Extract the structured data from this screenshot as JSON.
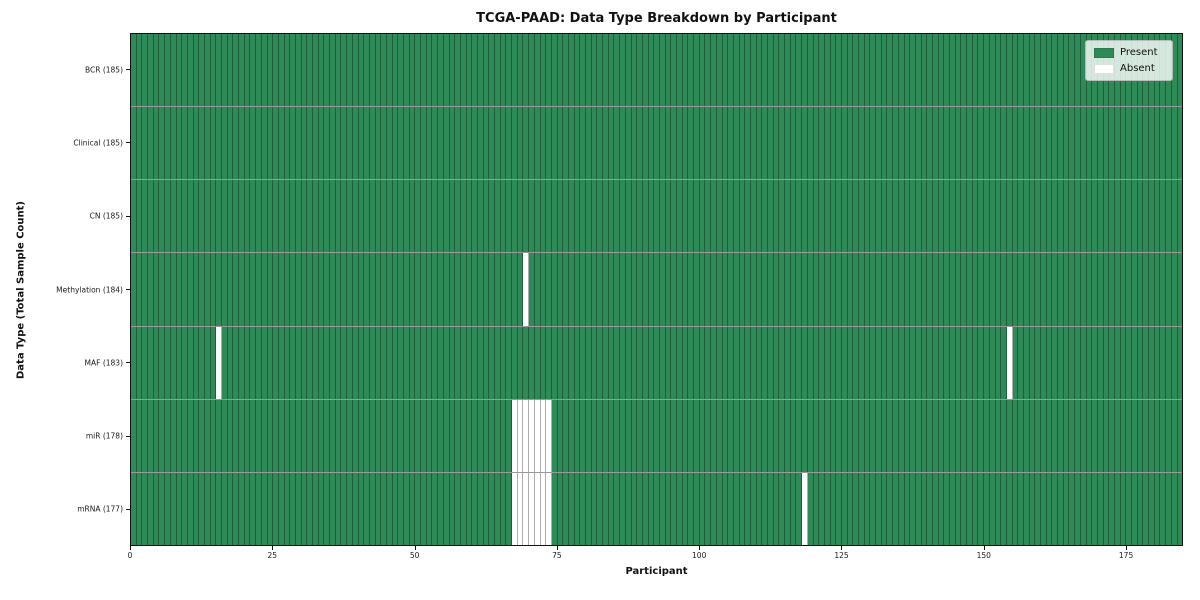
{
  "title": "TCGA-PAAD: Data Type Breakdown by Participant",
  "legend": {
    "entries": [
      {
        "label": "Present",
        "color": "#2e8b57"
      },
      {
        "label": "Absent",
        "color": "#ffffff"
      }
    ]
  },
  "colors": {
    "present": "#2e8b57",
    "absent": "#ffffff",
    "grid_line": "rgba(0,0,0,0.32)",
    "plot_border": "#111111"
  },
  "chart_data": {
    "type": "heatmap",
    "title": "TCGA-PAAD: Data Type Breakdown by Participant",
    "xlabel": "Participant",
    "ylabel": "Data Type (Total Sample Count)",
    "x_range": [
      0,
      185
    ],
    "x_ticks": [
      0,
      25,
      50,
      75,
      100,
      125,
      150,
      175
    ],
    "n_participants": 185,
    "grid": true,
    "legend_position": "upper right",
    "legend_entries": [
      "Present",
      "Absent"
    ],
    "value_encoding": {
      "present": 1,
      "absent": 0
    },
    "rows": [
      {
        "label": "BCR (185)",
        "data_type": "BCR",
        "total_sample_count": 185,
        "absent_participants": []
      },
      {
        "label": "Clinical (185)",
        "data_type": "Clinical",
        "total_sample_count": 185,
        "absent_participants": []
      },
      {
        "label": "CN (185)",
        "data_type": "CN",
        "total_sample_count": 185,
        "absent_participants": []
      },
      {
        "label": "Methylation (184)",
        "data_type": "Methylation",
        "total_sample_count": 184,
        "absent_participants": [
          69
        ]
      },
      {
        "label": "MAF (183)",
        "data_type": "MAF",
        "total_sample_count": 183,
        "absent_participants": [
          15,
          154
        ]
      },
      {
        "label": "miR (178)",
        "data_type": "miR",
        "total_sample_count": 178,
        "absent_participants": [
          67,
          68,
          69,
          70,
          71,
          72,
          73
        ]
      },
      {
        "label": "mRNA (177)",
        "data_type": "mRNA",
        "total_sample_count": 177,
        "absent_participants": [
          67,
          68,
          69,
          70,
          71,
          72,
          73,
          118
        ]
      }
    ]
  }
}
